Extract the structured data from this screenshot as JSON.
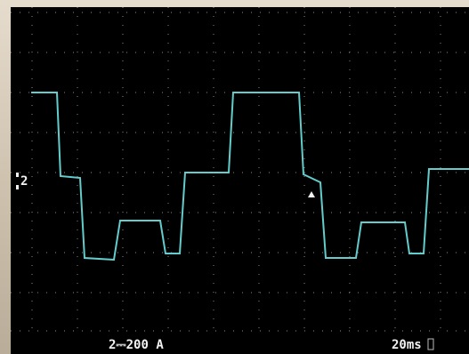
{
  "screen": {
    "channel_marker": "2",
    "channel_scale": "2⎓200 A",
    "timebase": "20ms"
  }
}
